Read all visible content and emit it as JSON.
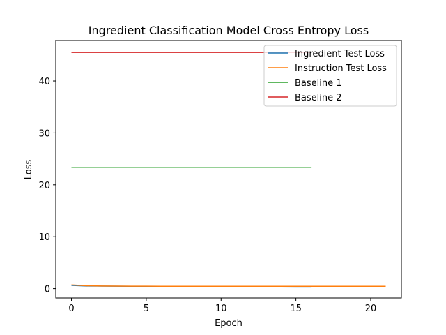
{
  "chart_data": {
    "type": "line",
    "title": "Ingredient Classification Model Cross Entropy Loss",
    "xlabel": "Epoch",
    "ylabel": "Loss",
    "xlim": [
      -1.05,
      22.05
    ],
    "ylim": [
      -1.8,
      47.8
    ],
    "xticks": [
      0,
      5,
      10,
      15,
      20
    ],
    "yticks": [
      0,
      10,
      20,
      30,
      40
    ],
    "legend_position": "top-right",
    "series": [
      {
        "name": "Ingredient Test Loss",
        "color": "#1f77b4",
        "x": [
          0,
          1,
          2,
          3,
          4,
          5,
          6,
          7,
          8,
          9,
          10,
          11,
          12,
          13,
          14,
          15,
          16
        ],
        "y": [
          0.62,
          0.5,
          0.48,
          0.47,
          0.46,
          0.46,
          0.45,
          0.45,
          0.45,
          0.44,
          0.44,
          0.44,
          0.44,
          0.44,
          0.44,
          0.43,
          0.43
        ]
      },
      {
        "name": "Instruction Test Loss",
        "color": "#ff7f0e",
        "x": [
          0,
          1,
          2,
          3,
          4,
          5,
          6,
          7,
          8,
          9,
          10,
          11,
          12,
          13,
          14,
          15,
          16,
          17,
          18,
          19,
          20,
          21
        ],
        "y": [
          0.72,
          0.55,
          0.5,
          0.48,
          0.47,
          0.47,
          0.46,
          0.46,
          0.46,
          0.45,
          0.45,
          0.45,
          0.46,
          0.45,
          0.45,
          0.45,
          0.45,
          0.44,
          0.45,
          0.44,
          0.44,
          0.45
        ]
      },
      {
        "name": "Baseline 1",
        "color": "#2ca02c",
        "x": [
          0,
          16
        ],
        "y": [
          23.3,
          23.3
        ]
      },
      {
        "name": "Baseline 2",
        "color": "#d62728",
        "x": [
          0,
          16
        ],
        "y": [
          45.5,
          45.5
        ]
      }
    ]
  }
}
